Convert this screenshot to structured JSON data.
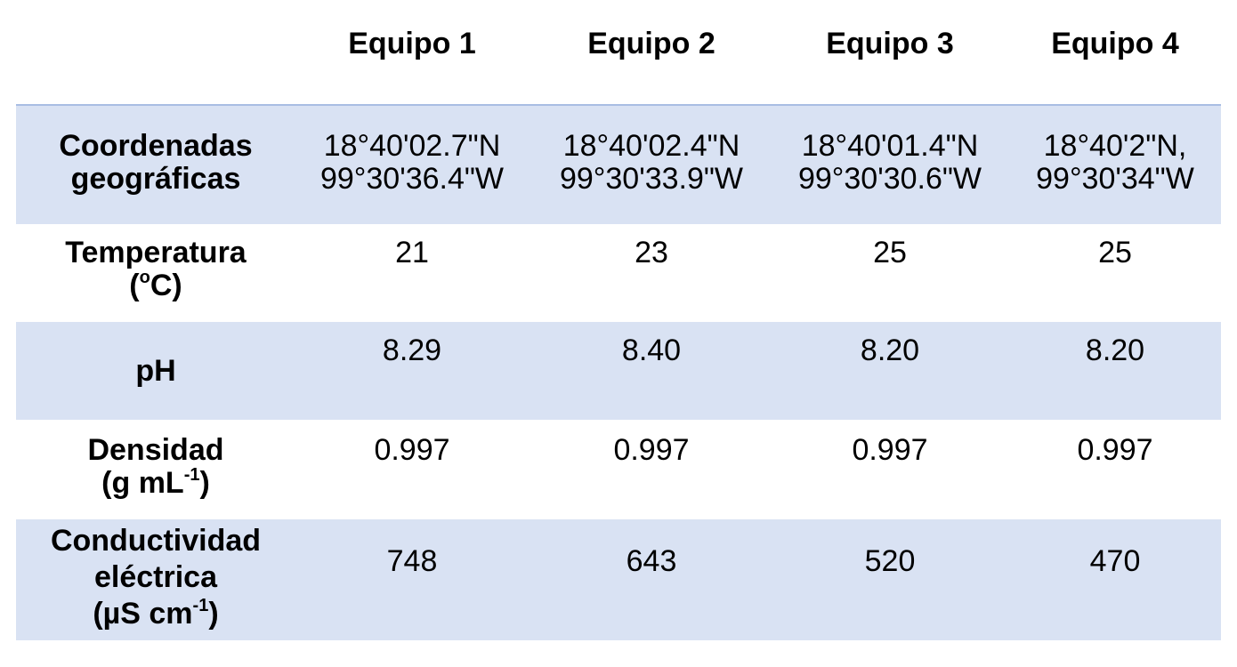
{
  "columns": [
    "Equipo 1",
    "Equipo 2",
    "Equipo 3",
    "Equipo 4"
  ],
  "rows": [
    {
      "label": [
        "Coordenadas",
        "geográficas"
      ],
      "values": [
        [
          "18°40'02.7\"N",
          "99°30'36.4\"W"
        ],
        [
          "18°40'02.4\"N",
          "99°30'33.9\"W"
        ],
        [
          "18°40'01.4\"N",
          "99°30'30.6\"W"
        ],
        [
          "18°40'2\"N,",
          "99°30'34\"W"
        ]
      ]
    },
    {
      "label": [
        "Temperatura",
        "(",
        "o",
        "C)"
      ],
      "values": [
        "21",
        "23",
        "25",
        "25"
      ]
    },
    {
      "label": [
        "pH"
      ],
      "values": [
        "8.29",
        "8.40",
        "8.20",
        "8.20"
      ]
    },
    {
      "label": [
        "Densidad",
        "(g mL",
        "-1",
        ")"
      ],
      "values": [
        "0.997",
        "0.997",
        "0.997",
        "0.997"
      ]
    },
    {
      "label": [
        "Conductividad",
        "eléctrica",
        "(µS cm",
        "-1",
        ")"
      ],
      "values": [
        "748",
        "643",
        "520",
        "470"
      ]
    }
  ],
  "colors": {
    "shade": "#d9e2f3",
    "border": "#a9bde3"
  }
}
